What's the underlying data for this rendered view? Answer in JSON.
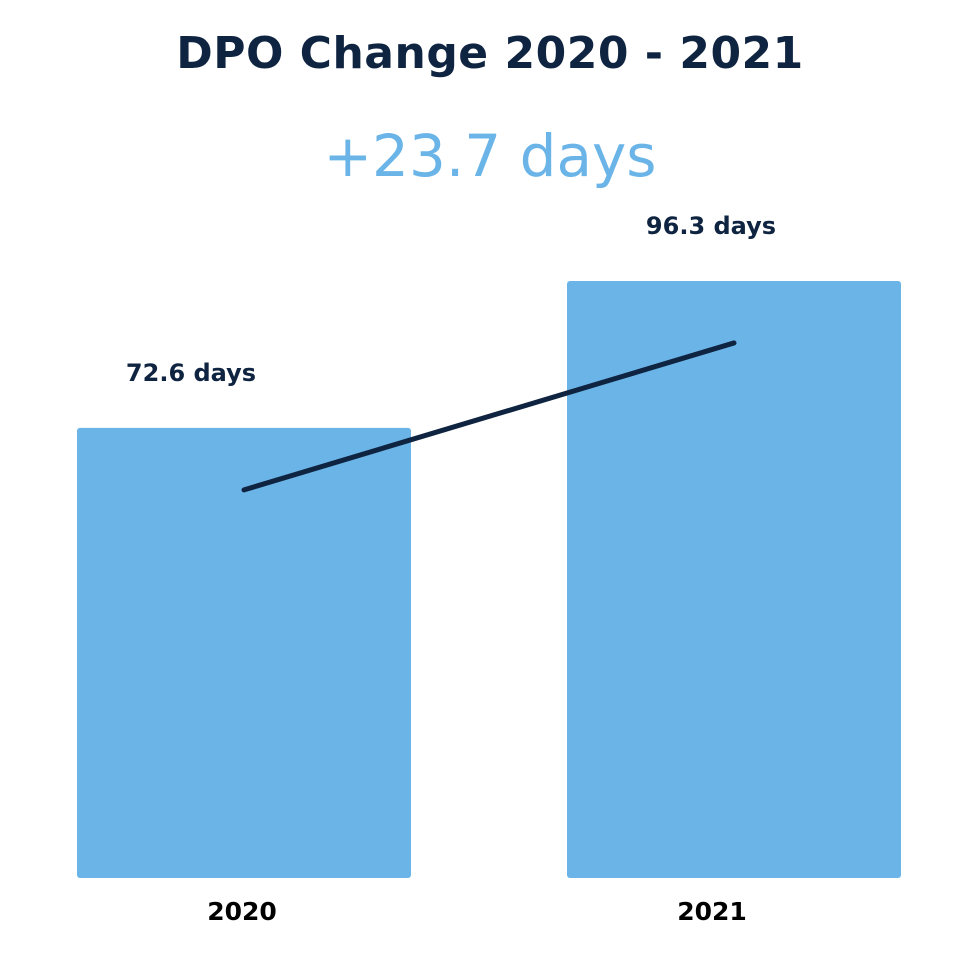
{
  "chart_data": {
    "type": "bar",
    "title": "DPO Change 2020 - 2021",
    "subtitle": "+23.7 days",
    "categories": [
      "2020",
      "2021"
    ],
    "values": [
      72.6,
      96.3
    ],
    "data_labels": [
      "72.6 days",
      "96.3 days"
    ],
    "xlabel": "",
    "ylabel": "",
    "grid": false,
    "trend_line": true,
    "colors": {
      "bar": "#6ab4e8",
      "title": "#0f2440",
      "subtitle": "#6ab4e8",
      "trend_line": "#0f2440",
      "axis_text": "#000000"
    }
  }
}
